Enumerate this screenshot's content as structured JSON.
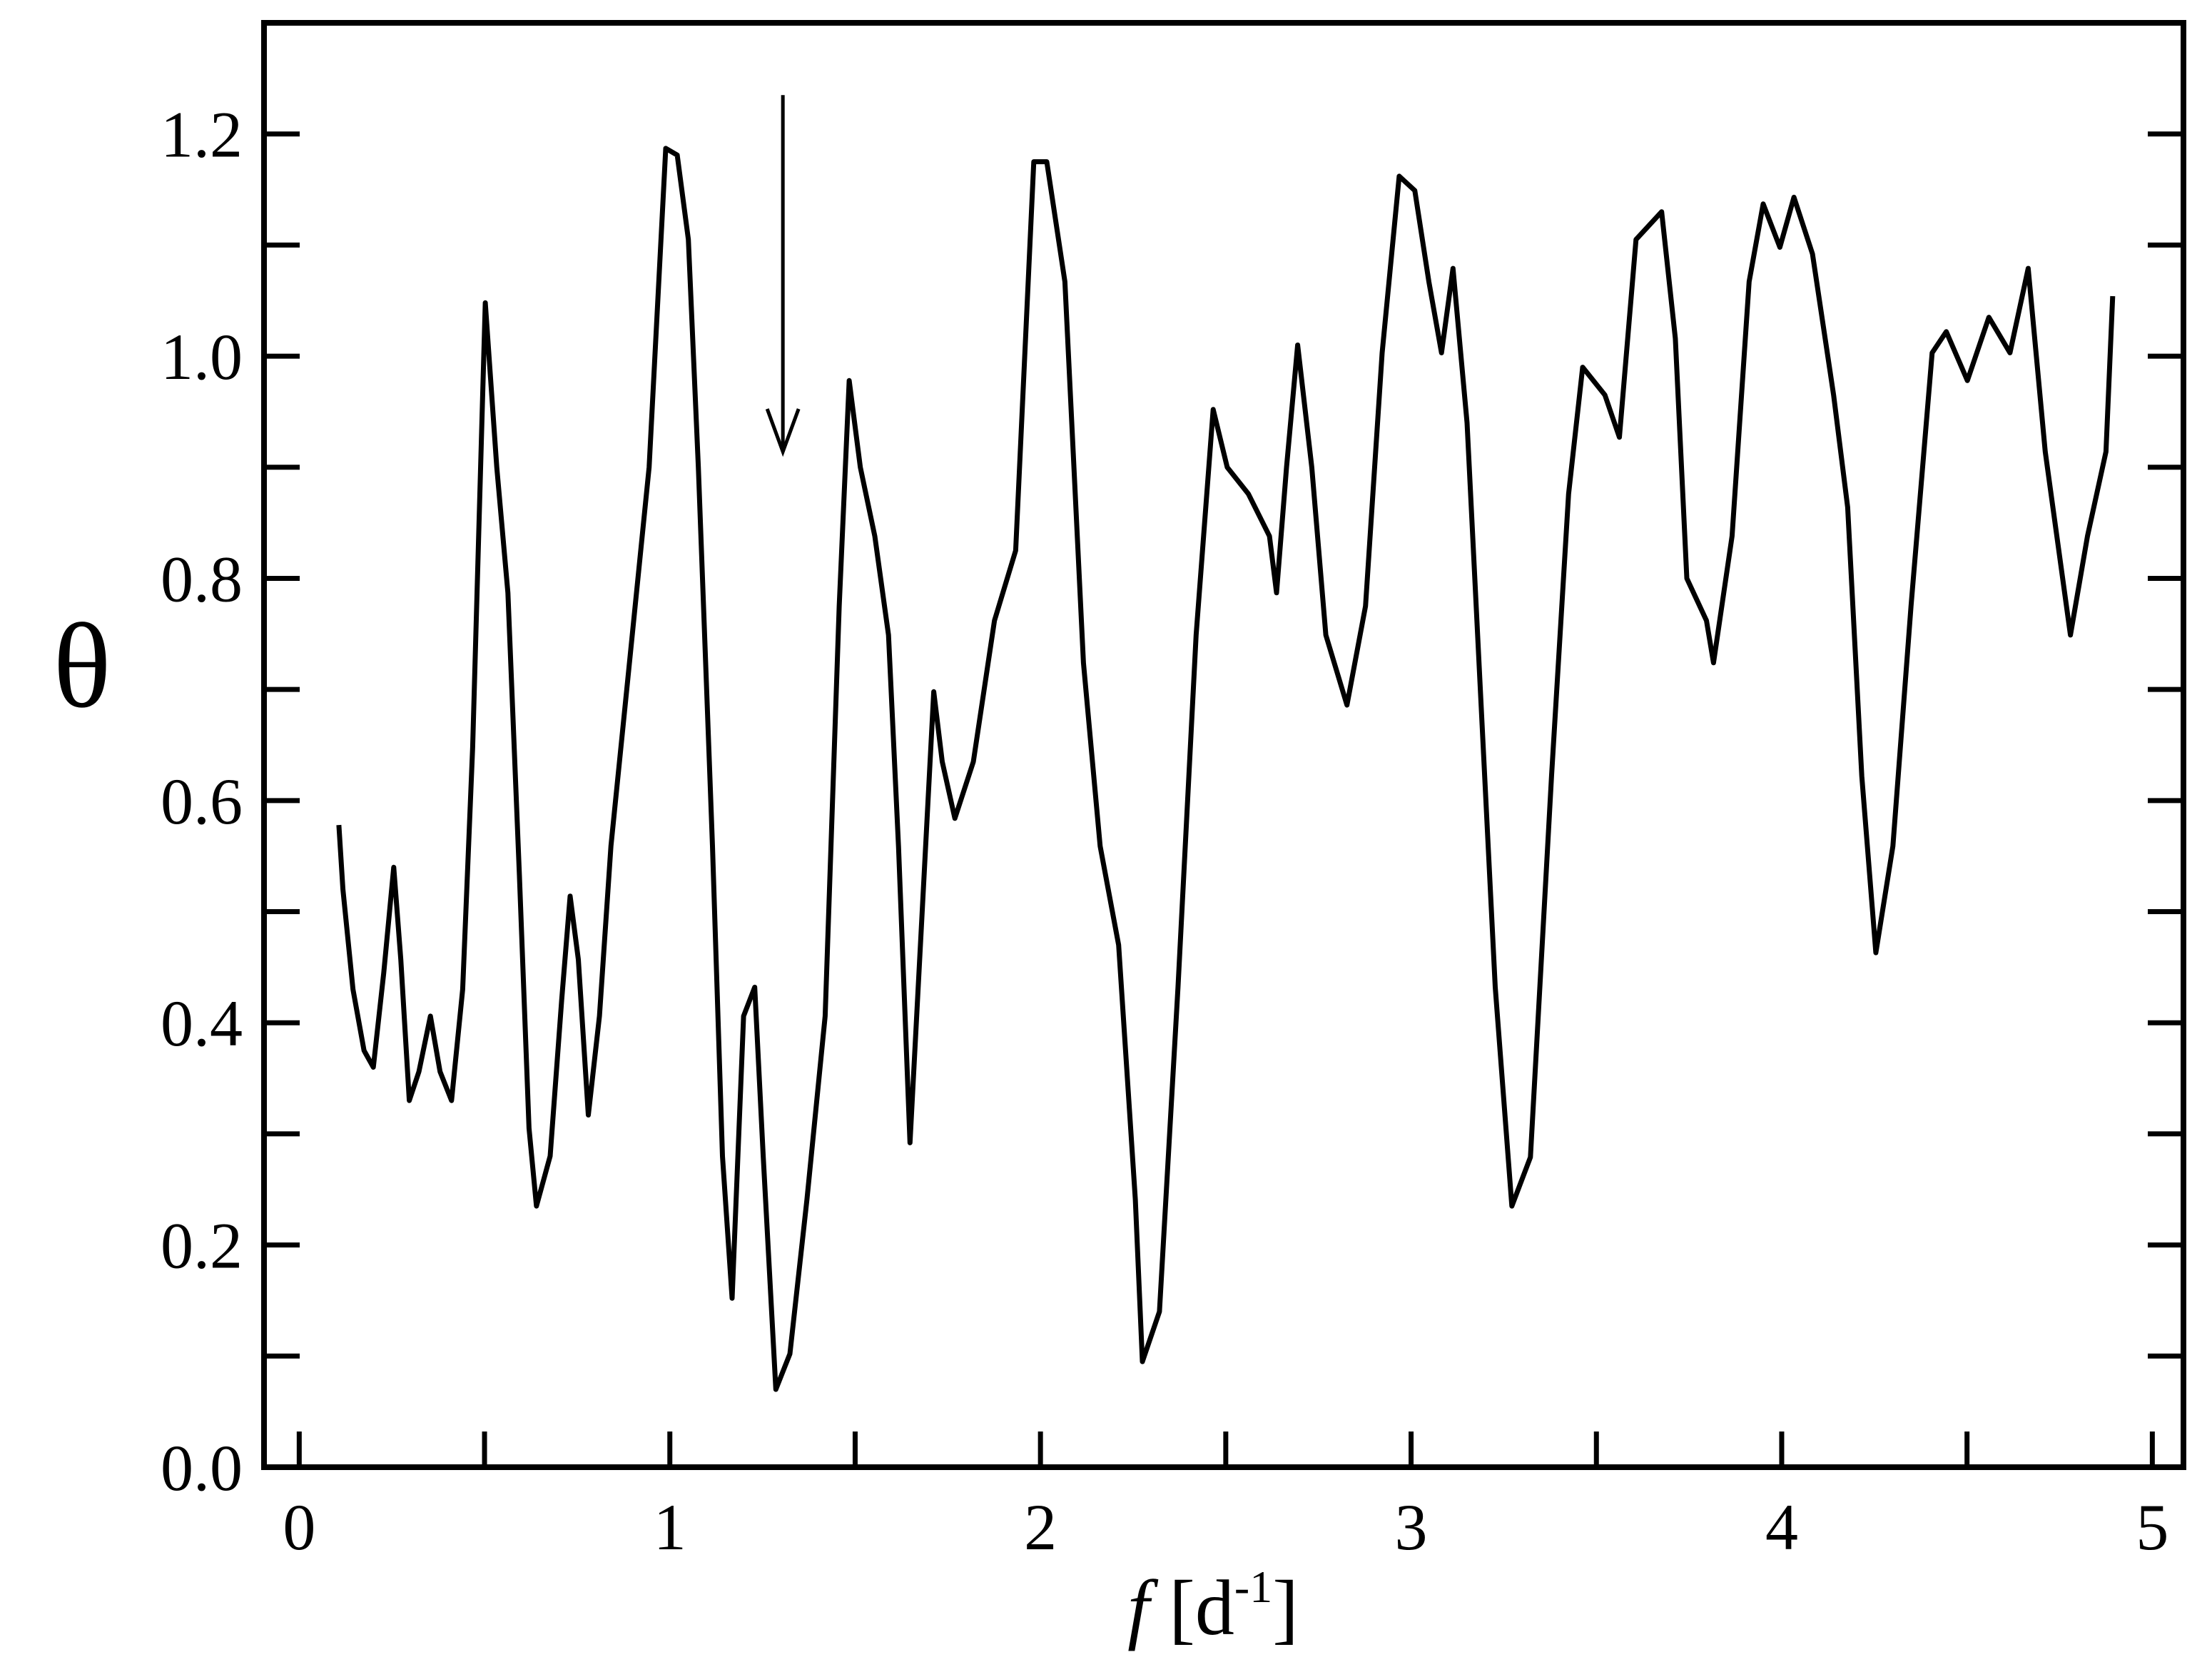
{
  "chart_data": {
    "type": "line",
    "xlabel": [
      "f",
      " [d",
      "-1",
      "]"
    ],
    "ylabel": "θ",
    "xlim": [
      -0.095,
      5.084
    ],
    "ylim": [
      0,
      1.3
    ],
    "xticks": [
      0,
      1,
      2,
      3,
      4,
      5
    ],
    "xminorticks": [
      0.5,
      1.5,
      2.5,
      3.5,
      4.5
    ],
    "yticks": [
      {
        "value": 0,
        "label": "0.0"
      },
      0.2,
      0.4,
      0.6,
      0.8,
      {
        "value": 1,
        "label": "1.0"
      },
      1.2
    ],
    "yminorticks": [
      0.1,
      0.3,
      0.5,
      0.7,
      0.9,
      1.1
    ],
    "arrow": {
      "x": 1.305,
      "y_start": 1.235,
      "y_end": 0.914
    },
    "x": [
      0.107,
      0.118,
      0.145,
      0.175,
      0.2,
      0.228,
      0.255,
      0.274,
      0.297,
      0.323,
      0.354,
      0.38,
      0.411,
      0.441,
      0.468,
      0.502,
      0.533,
      0.563,
      0.594,
      0.62,
      0.64,
      0.677,
      0.708,
      0.731,
      0.753,
      0.78,
      0.81,
      0.841,
      0.887,
      0.944,
      0.989,
      1.02,
      1.05,
      1.077,
      1.115,
      1.142,
      1.168,
      1.199,
      1.229,
      1.252,
      1.286,
      1.324,
      1.37,
      1.419,
      1.457,
      1.484,
      1.514,
      1.553,
      1.59,
      1.617,
      1.648,
      1.686,
      1.712,
      1.735,
      1.769,
      1.819,
      1.876,
      1.933,
      1.982,
      2.017,
      2.066,
      2.116,
      2.161,
      2.211,
      2.256,
      2.275,
      2.321,
      2.371,
      2.42,
      2.466,
      2.504,
      2.561,
      2.618,
      2.637,
      2.664,
      2.694,
      2.732,
      2.77,
      2.827,
      2.877,
      2.922,
      2.968,
      3.01,
      3.048,
      3.082,
      3.113,
      3.151,
      3.189,
      3.227,
      3.272,
      3.322,
      3.379,
      3.425,
      3.463,
      3.523,
      3.562,
      3.607,
      3.676,
      3.713,
      3.744,
      3.797,
      3.816,
      3.866,
      3.912,
      3.95,
      3.995,
      4.033,
      4.083,
      4.14,
      4.178,
      4.216,
      4.254,
      4.3,
      4.349,
      4.406,
      4.444,
      4.501,
      4.559,
      4.616,
      4.665,
      4.711,
      4.779,
      4.825,
      4.875,
      4.893
    ],
    "series": [
      {
        "color": "#000000",
        "values": [
          0.578,
          0.52,
          0.43,
          0.375,
          0.36,
          0.445,
          0.54,
          0.457,
          0.33,
          0.356,
          0.406,
          0.356,
          0.33,
          0.43,
          0.648,
          1.048,
          0.9,
          0.787,
          0.533,
          0.305,
          0.235,
          0.28,
          0.42,
          0.514,
          0.457,
          0.317,
          0.406,
          0.559,
          0.711,
          0.9,
          1.187,
          1.181,
          1.105,
          0.9,
          0.559,
          0.28,
          0.152,
          0.406,
          0.432,
          0.28,
          0.07,
          0.102,
          0.241,
          0.406,
          0.775,
          0.978,
          0.9,
          0.838,
          0.749,
          0.559,
          0.292,
          0.533,
          0.698,
          0.635,
          0.584,
          0.635,
          0.762,
          0.825,
          1.175,
          1.175,
          1.067,
          0.724,
          0.559,
          0.47,
          0.241,
          0.095,
          0.14,
          0.432,
          0.749,
          0.952,
          0.9,
          0.876,
          0.838,
          0.787,
          0.9,
          1.01,
          0.9,
          0.749,
          0.686,
          0.775,
          1.003,
          1.162,
          1.149,
          1.067,
          1.003,
          1.079,
          0.94,
          0.686,
          0.432,
          0.235,
          0.279,
          0.622,
          0.876,
          0.99,
          0.965,
          0.927,
          1.105,
          1.13,
          1.016,
          0.8,
          0.762,
          0.724,
          0.838,
          1.067,
          1.137,
          1.098,
          1.143,
          1.092,
          0.965,
          0.864,
          0.622,
          0.463,
          0.559,
          0.775,
          1.003,
          1.022,
          0.978,
          1.035,
          1.003,
          1.079,
          0.914,
          0.749,
          0.838,
          0.914,
          1.054
        ]
      }
    ]
  }
}
